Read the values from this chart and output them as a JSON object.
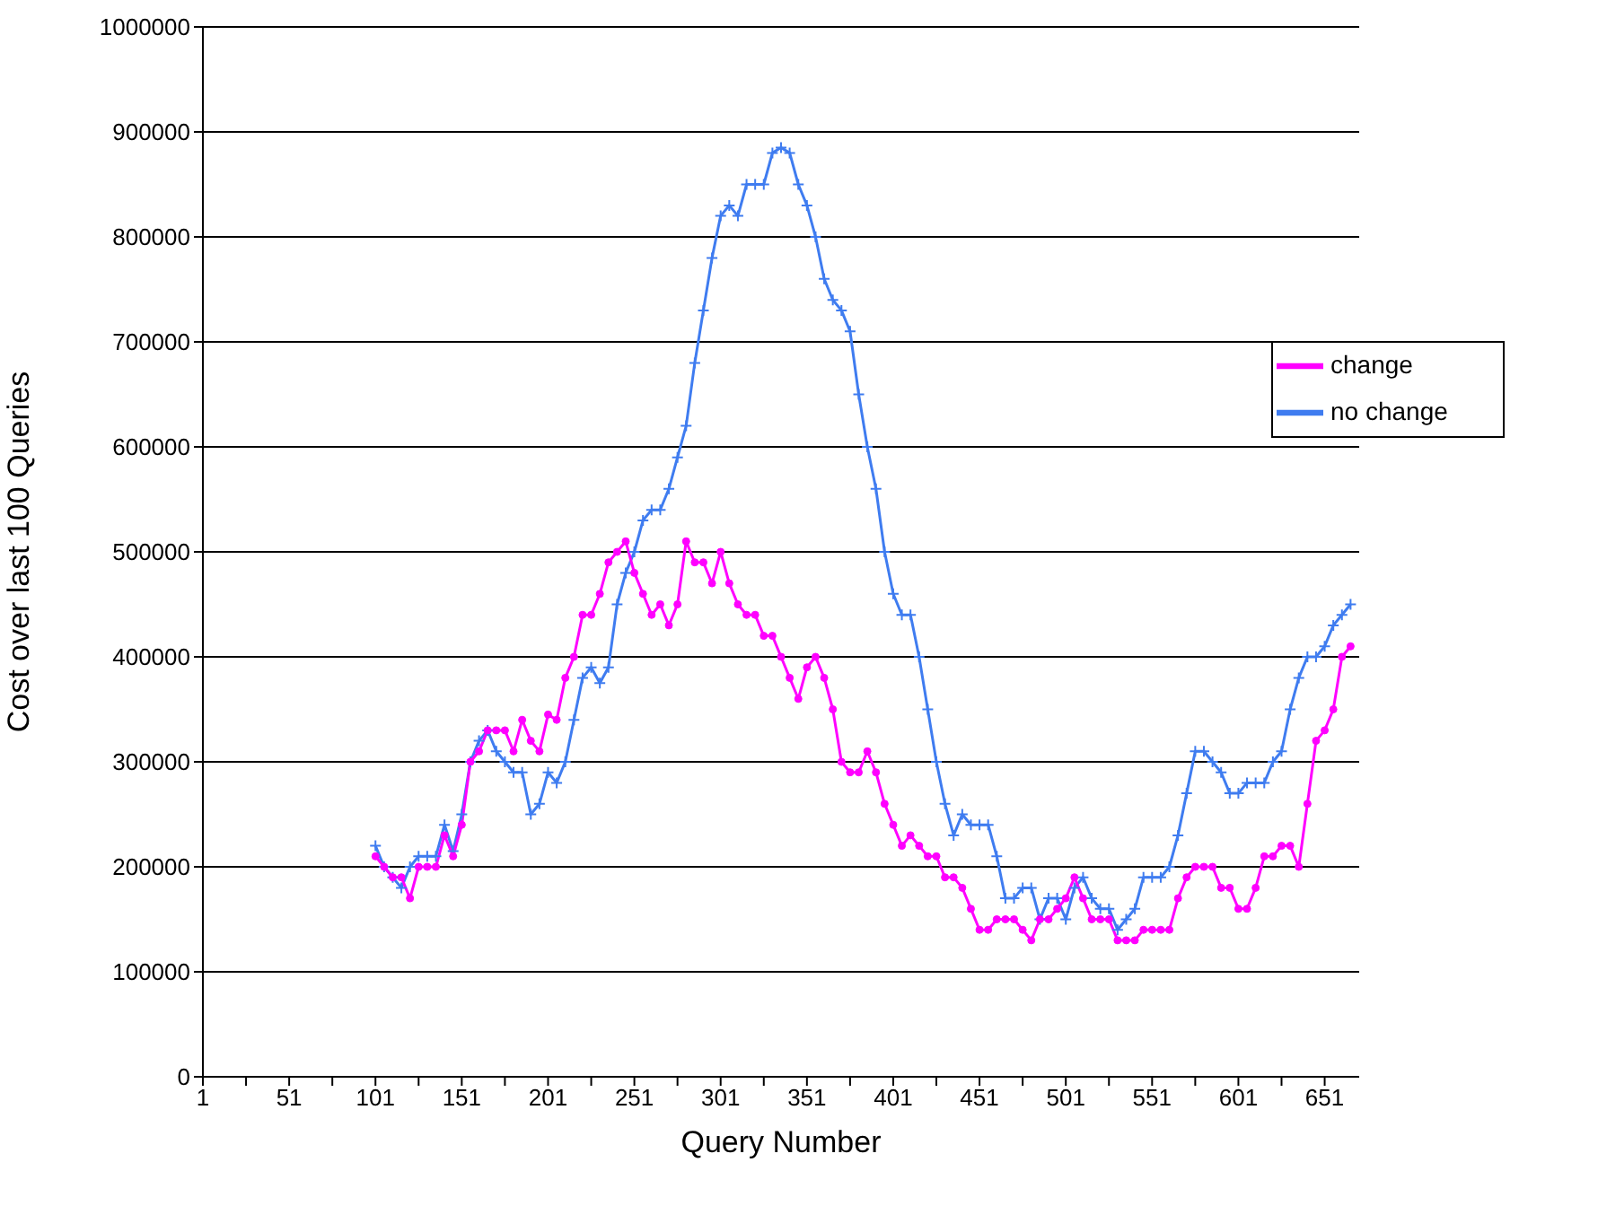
{
  "chart_data": {
    "type": "line",
    "xlabel": "Query Number",
    "ylabel": "Cost over last 100 Queries",
    "x": [
      101,
      106,
      111,
      116,
      121,
      126,
      131,
      136,
      141,
      146,
      151,
      156,
      161,
      166,
      171,
      176,
      181,
      186,
      191,
      196,
      201,
      206,
      211,
      216,
      221,
      226,
      231,
      236,
      241,
      246,
      251,
      256,
      261,
      266,
      271,
      276,
      281,
      286,
      291,
      296,
      301,
      306,
      311,
      316,
      321,
      326,
      331,
      336,
      341,
      346,
      351,
      356,
      361,
      366,
      371,
      376,
      381,
      386,
      391,
      396,
      401,
      406,
      411,
      416,
      421,
      426,
      431,
      436,
      441,
      446,
      451,
      456,
      461,
      466,
      471,
      476,
      481,
      486,
      491,
      496,
      501,
      506,
      511,
      516,
      521,
      526,
      531,
      536,
      541,
      546,
      551,
      556,
      561,
      566,
      571,
      576,
      581,
      586,
      591,
      596,
      601,
      606,
      611,
      616,
      621,
      626,
      631,
      636,
      641,
      646,
      651,
      656,
      661,
      666
    ],
    "series": [
      {
        "name": "no change",
        "color": "#3f7cf0",
        "marker": "cross",
        "values": [
          220000,
          200000,
          190000,
          180000,
          200000,
          210000,
          210000,
          210000,
          240000,
          215000,
          250000,
          300000,
          320000,
          330000,
          310000,
          300000,
          290000,
          290000,
          250000,
          260000,
          290000,
          280000,
          300000,
          340000,
          380000,
          390000,
          375000,
          390000,
          450000,
          480000,
          500000,
          530000,
          540000,
          540000,
          560000,
          590000,
          620000,
          680000,
          730000,
          780000,
          820000,
          830000,
          820000,
          850000,
          850000,
          850000,
          880000,
          885000,
          880000,
          850000,
          830000,
          800000,
          760000,
          740000,
          730000,
          710000,
          650000,
          600000,
          560000,
          500000,
          460000,
          440000,
          440000,
          400000,
          350000,
          300000,
          260000,
          230000,
          250000,
          240000,
          240000,
          240000,
          210000,
          170000,
          170000,
          180000,
          180000,
          150000,
          170000,
          170000,
          150000,
          180000,
          190000,
          170000,
          160000,
          160000,
          140000,
          150000,
          160000,
          190000,
          190000,
          190000,
          200000,
          230000,
          270000,
          310000,
          310000,
          300000,
          290000,
          270000,
          270000,
          280000,
          280000,
          280000,
          300000,
          310000,
          350000,
          380000,
          400000,
          400000,
          410000,
          430000,
          440000,
          450000
        ]
      },
      {
        "name": "change",
        "color": "#ff00ff",
        "marker": "circle",
        "values": [
          210000,
          200000,
          190000,
          190000,
          170000,
          200000,
          200000,
          200000,
          230000,
          210000,
          240000,
          300000,
          310000,
          330000,
          330000,
          330000,
          310000,
          340000,
          320000,
          310000,
          345000,
          340000,
          380000,
          400000,
          440000,
          440000,
          460000,
          490000,
          500000,
          510000,
          480000,
          460000,
          440000,
          450000,
          430000,
          450000,
          510000,
          490000,
          490000,
          470000,
          500000,
          470000,
          450000,
          440000,
          440000,
          420000,
          420000,
          400000,
          380000,
          360000,
          390000,
          400000,
          380000,
          350000,
          300000,
          290000,
          290000,
          310000,
          290000,
          260000,
          240000,
          220000,
          230000,
          220000,
          210000,
          210000,
          190000,
          190000,
          180000,
          160000,
          140000,
          140000,
          150000,
          150000,
          150000,
          140000,
          130000,
          150000,
          150000,
          160000,
          170000,
          190000,
          170000,
          150000,
          150000,
          150000,
          130000,
          130000,
          130000,
          140000,
          140000,
          140000,
          140000,
          170000,
          190000,
          200000,
          200000,
          200000,
          180000,
          180000,
          160000,
          160000,
          180000,
          210000,
          210000,
          220000,
          220000,
          200000,
          260000,
          320000,
          330000,
          350000,
          400000,
          410000
        ]
      }
    ],
    "xlim": [
      1,
      671
    ],
    "xticks": [
      1,
      {
        "value": 26,
        "label": null
      },
      51,
      {
        "value": 76,
        "label": null
      },
      101,
      {
        "value": 126,
        "label": null
      },
      151,
      {
        "value": 176,
        "label": null
      },
      201,
      {
        "value": 226,
        "label": null
      },
      251,
      {
        "value": 276,
        "label": null
      },
      301,
      {
        "value": 326,
        "label": null
      },
      351,
      {
        "value": 376,
        "label": null
      },
      401,
      {
        "value": 426,
        "label": null
      },
      451,
      {
        "value": 476,
        "label": null
      },
      501,
      {
        "value": 526,
        "label": null
      },
      551,
      {
        "value": 576,
        "label": null
      },
      601,
      {
        "value": 626,
        "label": null
      },
      651
    ],
    "ylim": [
      0,
      1000000
    ],
    "yticks": [
      0,
      100000,
      200000,
      300000,
      400000,
      500000,
      600000,
      700000,
      800000,
      900000,
      1000000
    ],
    "grid": "y",
    "legend": "right",
    "line_style": "solid"
  }
}
